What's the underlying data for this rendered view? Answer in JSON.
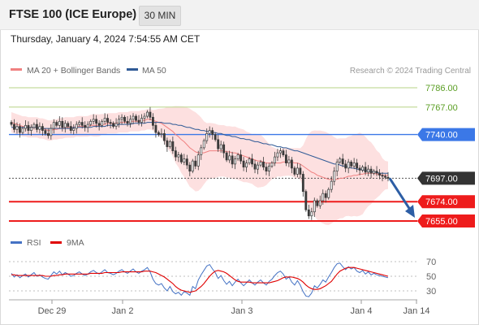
{
  "header": {
    "title": "FTSE 100 (ICE Europe)",
    "timeframe": "30 MIN",
    "datetime": "Thursday, January 4, 2024 7:54:55 AM CET"
  },
  "legend": {
    "ma20_label": "MA 20 + Bollinger Bands",
    "ma50_label": "MA 50",
    "ma20_color": "#f08080",
    "ma50_color": "#2f5a96",
    "credit": "Research © 2024 Trading Central"
  },
  "colors": {
    "resistance": "#c5dc9e",
    "resistance_text": "#5a9e23",
    "pivot": "#3b78e7",
    "support": "#ee1c1c",
    "current": "#333333",
    "candle": "#3a3a3a",
    "band": "#fde0e0",
    "arrow": "#2d5ea5"
  },
  "chart_data": [
    {
      "type": "candlestick",
      "title": "FTSE 100 (ICE Europe) 30 MIN",
      "x_ticks": [
        "Dec 29",
        "Jan 2",
        "Jan 3",
        "Jan 4",
        "Jan 14"
      ],
      "ylim": [
        7642,
        7794
      ],
      "levels": [
        {
          "value": 7786.0,
          "label": "7786.00",
          "kind": "resistance"
        },
        {
          "value": 7767.0,
          "label": "7767.00",
          "kind": "resistance"
        },
        {
          "value": 7740.0,
          "label": "7740.00",
          "kind": "pivot"
        },
        {
          "value": 7697.0,
          "label": "7697.00",
          "kind": "current"
        },
        {
          "value": 7674.0,
          "label": "7674.00",
          "kind": "support"
        },
        {
          "value": 7655.0,
          "label": "7655.00",
          "kind": "support"
        }
      ],
      "closes": [
        7750,
        7745,
        7748,
        7742,
        7746,
        7749,
        7744,
        7747,
        7750,
        7745,
        7748,
        7744,
        7741,
        7739,
        7746,
        7752,
        7749,
        7753,
        7747,
        7751,
        7748,
        7744,
        7746,
        7750,
        7752,
        7749,
        7747,
        7750,
        7753,
        7755,
        7751,
        7749,
        7753,
        7756,
        7752,
        7751,
        7748,
        7751,
        7755,
        7757,
        7753,
        7751,
        7755,
        7758,
        7754,
        7752,
        7756,
        7758,
        7762,
        7757,
        7749,
        7742,
        7740,
        7741,
        7734,
        7728,
        7733,
        7724,
        7718,
        7720,
        7713,
        7716,
        7710,
        7704,
        7714,
        7709,
        7720,
        7727,
        7734,
        7741,
        7744,
        7740,
        7735,
        7726,
        7730,
        7722,
        7715,
        7719,
        7711,
        7716,
        7720,
        7714,
        7708,
        7712,
        7716,
        7711,
        7706,
        7710,
        7713,
        7708,
        7704,
        7709,
        7712,
        7718,
        7722,
        7724,
        7720,
        7712,
        7715,
        7707,
        7701,
        7707,
        7701,
        7684,
        7666,
        7660,
        7664,
        7675,
        7670,
        7675,
        7682,
        7678,
        7686,
        7694,
        7704,
        7713,
        7716,
        7711,
        7707,
        7713,
        7709,
        7712,
        7707,
        7705,
        7708,
        7703,
        7706,
        7702,
        7704,
        7702,
        7700,
        7699,
        7698,
        7697
      ],
      "ma20": [
        7752,
        7751,
        7750,
        7749,
        7748,
        7748,
        7747,
        7747,
        7747,
        7747,
        7746,
        7746,
        7745,
        7744,
        7744,
        7745,
        7745,
        7746,
        7746,
        7747,
        7747,
        7747,
        7747,
        7748,
        7748,
        7748,
        7748,
        7748,
        7749,
        7749,
        7749,
        7749,
        7750,
        7750,
        7751,
        7751,
        7751,
        7751,
        7752,
        7752,
        7752,
        7752,
        7753,
        7753,
        7753,
        7753,
        7754,
        7754,
        7755,
        7755,
        7754,
        7753,
        7752,
        7751,
        7749,
        7747,
        7745,
        7743,
        7740,
        7738,
        7735,
        7733,
        7730,
        7727,
        7725,
        7723,
        7722,
        7722,
        7722,
        7723,
        7724,
        7724,
        7724,
        7724,
        7724,
        7724,
        7723,
        7723,
        7722,
        7722,
        7721,
        7720,
        7719,
        7718,
        7717,
        7716,
        7715,
        7714,
        7714,
        7713,
        7712,
        7712,
        7712,
        7712,
        7712,
        7712,
        7713,
        7713,
        7713,
        7713,
        7712,
        7712,
        7711,
        7709,
        7707,
        7705,
        7703,
        7702,
        7700,
        7699,
        7698,
        7697,
        7696,
        7696,
        7696,
        7696,
        7697,
        7697,
        7698,
        7699,
        7699,
        7700,
        7700,
        7701,
        7701,
        7702,
        7702,
        7702,
        7702,
        7701,
        7701,
        7700,
        7700,
        7700
      ],
      "ma50": [
        7747,
        7747,
        7747,
        7747,
        7747,
        7747,
        7747,
        7747,
        7747,
        7747,
        7746,
        7746,
        7746,
        7746,
        7746,
        7746,
        7746,
        7746,
        7746,
        7746,
        7746,
        7746,
        7747,
        7747,
        7747,
        7747,
        7747,
        7747,
        7747,
        7748,
        7748,
        7748,
        7748,
        7748,
        7749,
        7749,
        7749,
        7749,
        7750,
        7750,
        7750,
        7750,
        7750,
        7751,
        7751,
        7751,
        7751,
        7751,
        7752,
        7752,
        7752,
        7752,
        7752,
        7752,
        7751,
        7751,
        7751,
        7750,
        7750,
        7749,
        7749,
        7748,
        7747,
        7747,
        7746,
        7745,
        7745,
        7744,
        7744,
        7743,
        7743,
        7742,
        7742,
        7741,
        7741,
        7740,
        7739,
        7739,
        7738,
        7738,
        7737,
        7736,
        7736,
        7735,
        7735,
        7734,
        7733,
        7733,
        7732,
        7731,
        7731,
        7730,
        7730,
        7729,
        7728,
        7728,
        7727,
        7727,
        7726,
        7725,
        7724,
        7724,
        7723,
        7722,
        7721,
        7720,
        7719,
        7718,
        7717,
        7716,
        7715,
        7714,
        7713,
        7712,
        7711,
        7711,
        7710,
        7709,
        7709,
        7708,
        7707,
        7707,
        7706,
        7706,
        7705,
        7705,
        7704,
        7704,
        7703,
        7703,
        7702,
        7702,
        7702,
        7702
      ]
    },
    {
      "type": "line",
      "title": "",
      "legend": [
        "RSI",
        "9MA"
      ],
      "series_colors": [
        "#4472c4",
        "#e00000"
      ],
      "y_ticks": [
        "70",
        "50",
        "30"
      ],
      "ylim": [
        20,
        80
      ],
      "rsi": [
        54,
        49,
        52,
        48,
        51,
        53,
        49,
        52,
        55,
        50,
        52,
        49,
        47,
        46,
        51,
        56,
        53,
        57,
        52,
        55,
        53,
        50,
        51,
        54,
        56,
        53,
        51,
        53,
        56,
        58,
        55,
        53,
        56,
        59,
        55,
        54,
        52,
        54,
        57,
        59,
        56,
        54,
        57,
        60,
        56,
        54,
        57,
        59,
        62,
        56,
        46,
        40,
        38,
        40,
        34,
        30,
        36,
        29,
        26,
        28,
        24,
        29,
        27,
        24,
        36,
        33,
        45,
        52,
        58,
        64,
        66,
        60,
        55,
        47,
        51,
        44,
        39,
        43,
        37,
        42,
        46,
        41,
        37,
        41,
        45,
        41,
        38,
        42,
        45,
        41,
        38,
        43,
        46,
        51,
        55,
        57,
        53,
        46,
        49,
        42,
        38,
        44,
        38,
        29,
        23,
        22,
        27,
        37,
        34,
        39,
        45,
        42,
        49,
        55,
        62,
        67,
        68,
        63,
        59,
        63,
        60,
        62,
        57,
        55,
        58,
        53,
        56,
        52,
        54,
        52,
        51,
        50,
        49,
        48
      ],
      "ma9": [
        52,
        52,
        51,
        51,
        51,
        51,
        51,
        51,
        51,
        51,
        51,
        51,
        50,
        50,
        50,
        51,
        51,
        52,
        52,
        53,
        53,
        53,
        53,
        53,
        53,
        53,
        53,
        53,
        54,
        54,
        54,
        54,
        54,
        55,
        55,
        55,
        55,
        55,
        55,
        56,
        56,
        56,
        56,
        56,
        56,
        56,
        56,
        57,
        57,
        57,
        56,
        55,
        53,
        51,
        49,
        46,
        43,
        40,
        36,
        33,
        31,
        30,
        29,
        28,
        29,
        30,
        33,
        36,
        40,
        45,
        50,
        54,
        57,
        58,
        57,
        56,
        54,
        51,
        48,
        45,
        43,
        42,
        42,
        42,
        42,
        41,
        41,
        41,
        41,
        41,
        41,
        41,
        42,
        43,
        44,
        46,
        48,
        49,
        49,
        49,
        48,
        47,
        45,
        42,
        38,
        35,
        33,
        32,
        32,
        33,
        35,
        37,
        40,
        43,
        48,
        53,
        57,
        59,
        61,
        62,
        62,
        62,
        61,
        60,
        59,
        58,
        57,
        56,
        55,
        54,
        53,
        52,
        51,
        50
      ]
    }
  ]
}
